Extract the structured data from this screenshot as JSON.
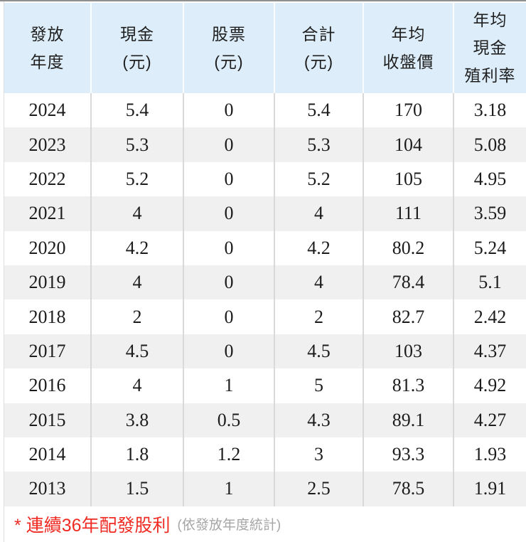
{
  "chart_data": {
    "type": "table",
    "columns": [
      {
        "id": "year",
        "key": "year",
        "label": "發放年度",
        "label_lines": [
          "發放",
          "年度"
        ]
      },
      {
        "id": "cash",
        "key": "cash",
        "label": "現金(元)",
        "label_lines": [
          "現金",
          "(元)"
        ]
      },
      {
        "id": "stock",
        "key": "stock",
        "label": "股票(元)",
        "label_lines": [
          "股票",
          "(元)"
        ]
      },
      {
        "id": "total",
        "key": "total",
        "label": "合計(元)",
        "label_lines": [
          "合計",
          "(元)"
        ]
      },
      {
        "id": "avg-close",
        "key": "avg_close",
        "label": "年均收盤價",
        "label_lines": [
          "年均",
          "收盤價"
        ]
      },
      {
        "id": "cash-yield",
        "key": "cash_yield",
        "label": "年均現金殖利率",
        "label_lines": [
          "年均",
          "現金",
          "殖利率"
        ]
      }
    ],
    "rows": [
      {
        "year": "2024",
        "cash": "5.4",
        "stock": "0",
        "total": "5.4",
        "avg_close": "170",
        "cash_yield": "3.18"
      },
      {
        "year": "2023",
        "cash": "5.3",
        "stock": "0",
        "total": "5.3",
        "avg_close": "104",
        "cash_yield": "5.08"
      },
      {
        "year": "2022",
        "cash": "5.2",
        "stock": "0",
        "total": "5.2",
        "avg_close": "105",
        "cash_yield": "4.95"
      },
      {
        "year": "2021",
        "cash": "4",
        "stock": "0",
        "total": "4",
        "avg_close": "111",
        "cash_yield": "3.59"
      },
      {
        "year": "2020",
        "cash": "4.2",
        "stock": "0",
        "total": "4.2",
        "avg_close": "80.2",
        "cash_yield": "5.24"
      },
      {
        "year": "2019",
        "cash": "4",
        "stock": "0",
        "total": "4",
        "avg_close": "78.4",
        "cash_yield": "5.1"
      },
      {
        "year": "2018",
        "cash": "2",
        "stock": "0",
        "total": "2",
        "avg_close": "82.7",
        "cash_yield": "2.42"
      },
      {
        "year": "2017",
        "cash": "4.5",
        "stock": "0",
        "total": "4.5",
        "avg_close": "103",
        "cash_yield": "4.37"
      },
      {
        "year": "2016",
        "cash": "4",
        "stock": "1",
        "total": "5",
        "avg_close": "81.3",
        "cash_yield": "4.92"
      },
      {
        "year": "2015",
        "cash": "3.8",
        "stock": "0.5",
        "total": "4.3",
        "avg_close": "89.1",
        "cash_yield": "4.27"
      },
      {
        "year": "2014",
        "cash": "1.8",
        "stock": "1.2",
        "total": "3",
        "avg_close": "93.3",
        "cash_yield": "1.93"
      },
      {
        "year": "2013",
        "cash": "1.5",
        "stock": "1",
        "total": "2.5",
        "avg_close": "78.5",
        "cash_yield": "1.91"
      }
    ]
  },
  "footnote": {
    "marker": "*",
    "text": "連續36年配發股利",
    "suffix": "(依發放年度統計)"
  },
  "colors": {
    "header_bg": "#ddeefa",
    "row_stripe": "#f0f0f0",
    "divider": "#d9d9d9",
    "note_red": "#ef2b23",
    "note_gray": "#a6a6a6",
    "top_line": "#8f8f8f",
    "edge_line": "#dddddd"
  }
}
